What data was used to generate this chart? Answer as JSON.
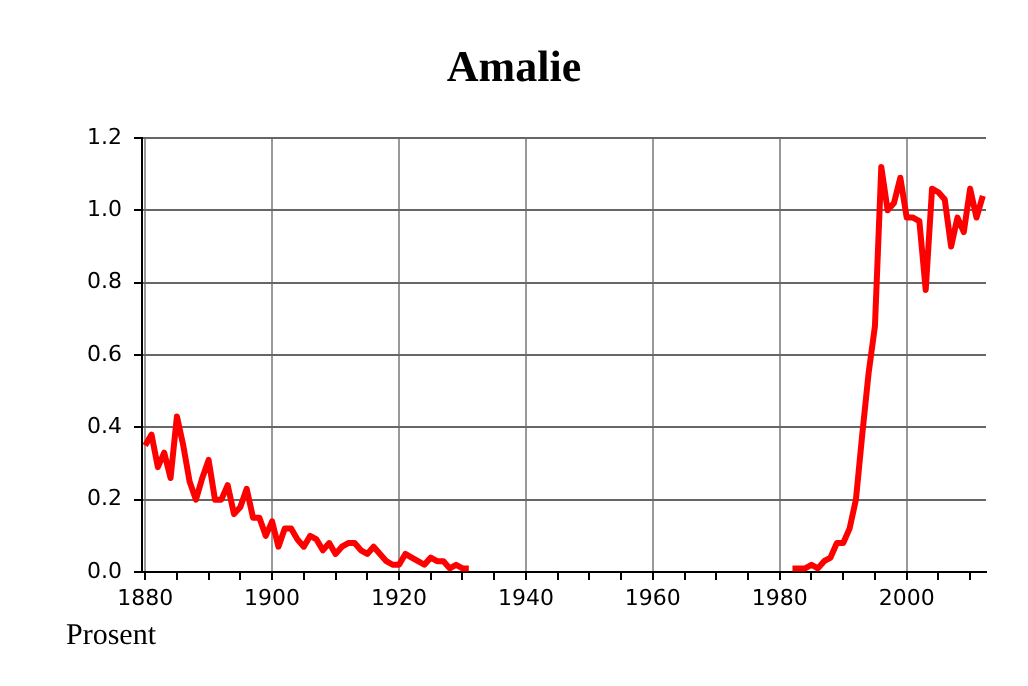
{
  "chart_data": {
    "type": "line",
    "title": "Amalie",
    "ylabel": "Prosent",
    "x": [
      1880,
      1881,
      1882,
      1883,
      1884,
      1885,
      1886,
      1887,
      1888,
      1889,
      1890,
      1891,
      1892,
      1893,
      1894,
      1895,
      1896,
      1897,
      1898,
      1899,
      1900,
      1901,
      1902,
      1903,
      1904,
      1905,
      1906,
      1907,
      1908,
      1909,
      1910,
      1911,
      1912,
      1913,
      1914,
      1915,
      1916,
      1917,
      1918,
      1919,
      1920,
      1921,
      1922,
      1923,
      1924,
      1925,
      1926,
      1927,
      1928,
      1929,
      1930,
      1931,
      1932,
      1933,
      1934,
      1935,
      1936,
      1937,
      1938,
      1939,
      1940,
      1941,
      1942,
      1943,
      1944,
      1945,
      1946,
      1947,
      1948,
      1949,
      1950,
      1951,
      1952,
      1953,
      1954,
      1955,
      1956,
      1957,
      1958,
      1959,
      1960,
      1961,
      1962,
      1963,
      1964,
      1965,
      1966,
      1967,
      1968,
      1969,
      1970,
      1971,
      1972,
      1973,
      1974,
      1975,
      1976,
      1977,
      1978,
      1979,
      1980,
      1981,
      1982,
      1983,
      1984,
      1985,
      1986,
      1987,
      1988,
      1989,
      1990,
      1991,
      1992,
      1993,
      1994,
      1995,
      1996,
      1997,
      1998,
      1999,
      2000,
      2001,
      2002,
      2003,
      2004,
      2005,
      2006,
      2007,
      2008,
      2009,
      2010,
      2011,
      2012
    ],
    "series": [
      {
        "color": "#ff0000",
        "values": [
          0.35,
          0.38,
          0.29,
          0.33,
          0.26,
          0.43,
          0.35,
          0.25,
          0.2,
          0.26,
          0.31,
          0.2,
          0.2,
          0.24,
          0.16,
          0.18,
          0.23,
          0.15,
          0.15,
          0.1,
          0.14,
          0.07,
          0.12,
          0.12,
          0.09,
          0.07,
          0.1,
          0.09,
          0.06,
          0.08,
          0.05,
          0.07,
          0.08,
          0.08,
          0.06,
          0.05,
          0.07,
          0.05,
          0.03,
          0.02,
          0.02,
          0.05,
          0.04,
          0.03,
          0.02,
          0.04,
          0.03,
          0.03,
          0.01,
          0.02,
          0.01,
          0.01,
          null,
          null,
          null,
          null,
          null,
          null,
          null,
          null,
          null,
          null,
          null,
          null,
          null,
          null,
          null,
          null,
          null,
          null,
          null,
          null,
          null,
          null,
          null,
          null,
          null,
          null,
          null,
          null,
          null,
          null,
          null,
          null,
          null,
          null,
          null,
          null,
          null,
          null,
          null,
          null,
          null,
          null,
          null,
          null,
          null,
          null,
          null,
          null,
          null,
          null,
          0.01,
          0.01,
          0.01,
          0.02,
          0.01,
          0.03,
          0.04,
          0.08,
          0.08,
          0.12,
          0.2,
          0.38,
          0.55,
          0.68,
          1.12,
          1.0,
          1.02,
          1.09,
          0.98,
          0.98,
          0.97,
          0.78,
          1.06,
          1.05,
          1.03,
          0.9,
          0.98,
          0.94,
          1.06,
          0.98,
          1.04
        ]
      }
    ],
    "xlim": [
      1879.5,
      2012.5
    ],
    "xticks": [
      1880,
      {
        "value": 1885,
        "label": null
      },
      {
        "value": 1890,
        "label": null
      },
      {
        "value": 1895,
        "label": null
      },
      1900,
      {
        "value": 1905,
        "label": null
      },
      {
        "value": 1910,
        "label": null
      },
      {
        "value": 1915,
        "label": null
      },
      1920,
      {
        "value": 1925,
        "label": null
      },
      {
        "value": 1930,
        "label": null
      },
      {
        "value": 1935,
        "label": null
      },
      1940,
      {
        "value": 1945,
        "label": null
      },
      {
        "value": 1950,
        "label": null
      },
      {
        "value": 1955,
        "label": null
      },
      1960,
      {
        "value": 1965,
        "label": null
      },
      {
        "value": 1970,
        "label": null
      },
      {
        "value": 1975,
        "label": null
      },
      1980,
      {
        "value": 1985,
        "label": null
      },
      {
        "value": 1990,
        "label": null
      },
      {
        "value": 1995,
        "label": null
      },
      2000,
      {
        "value": 2005,
        "label": null
      },
      {
        "value": 2010,
        "label": null
      }
    ],
    "ylim": [
      0,
      1.2
    ],
    "yticks": [
      {
        "value": 0,
        "label": "0.0"
      },
      0.2,
      0.4,
      0.6,
      0.8,
      {
        "value": 1,
        "label": "1.0"
      },
      1.2
    ],
    "grid": true,
    "legend": false,
    "marker": "none",
    "line_style": "solid"
  }
}
